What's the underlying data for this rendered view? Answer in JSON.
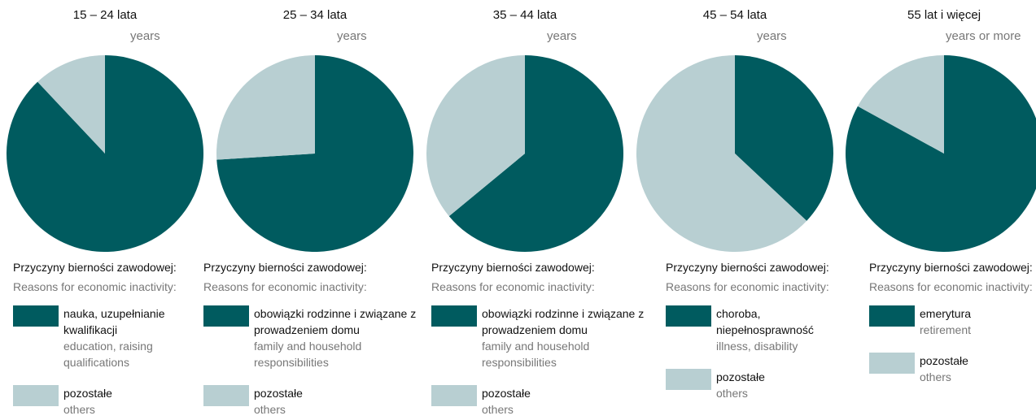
{
  "chart_data": [
    {
      "type": "pie",
      "title": "15 – 24 lata",
      "subtitle": "years",
      "legend_title": "Przyczyny bierności zawodowej:",
      "legend_subtitle": "Reasons for economic inactivity:",
      "categories": [
        "nauka, uzupełnianie kwalifikacji",
        "pozostałe"
      ],
      "categories_en": [
        "education, raising qualifications",
        "others"
      ],
      "values": [
        88,
        12
      ],
      "colors": [
        "#005b5f",
        "#b8cfd2"
      ]
    },
    {
      "type": "pie",
      "title": "25 – 34 lata",
      "subtitle": "years",
      "legend_title": "Przyczyny bierności zawodowej:",
      "legend_subtitle": "Reasons for economic inactivity:",
      "categories": [
        "obowiązki rodzinne i związane z prowadzeniem domu",
        "pozostałe"
      ],
      "categories_en": [
        "family and household responsibilities",
        "others"
      ],
      "values": [
        74,
        26
      ],
      "colors": [
        "#005b5f",
        "#b8cfd2"
      ]
    },
    {
      "type": "pie",
      "title": "35 – 44 lata",
      "subtitle": "years",
      "legend_title": "Przyczyny bierności zawodowej:",
      "legend_subtitle": "Reasons for economic inactivity:",
      "categories": [
        "obowiązki rodzinne i związane z prowadzeniem domu",
        "pozostałe"
      ],
      "categories_en": [
        "family and household responsibilities",
        "others"
      ],
      "values": [
        64,
        36
      ],
      "colors": [
        "#005b5f",
        "#b8cfd2"
      ]
    },
    {
      "type": "pie",
      "title": "45 – 54 lata",
      "subtitle": "years",
      "legend_title": "Przyczyny bierności zawodowej:",
      "legend_subtitle": "Reasons for economic inactivity:",
      "categories": [
        "choroba, niepełnosprawność",
        "pozostałe"
      ],
      "categories_en": [
        "illness, disability",
        "others"
      ],
      "values": [
        37,
        63
      ],
      "colors": [
        "#005b5f",
        "#b8cfd2"
      ]
    },
    {
      "type": "pie",
      "title": "55 lat i więcej",
      "subtitle": "years or more",
      "legend_title": "Przyczyny bierności zawodowej:",
      "legend_subtitle": "Reasons for economic inactivity:",
      "categories": [
        "emerytura",
        "pozostałe"
      ],
      "categories_en": [
        "retirement",
        "others"
      ],
      "values": [
        83,
        17
      ],
      "colors": [
        "#005b5f",
        "#b8cfd2"
      ]
    }
  ]
}
